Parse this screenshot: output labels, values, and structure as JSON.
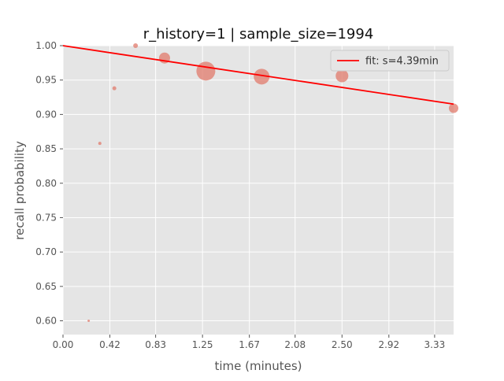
{
  "chart_data": {
    "type": "scatter",
    "title": "r_history=1 | sample_size=1994",
    "xlabel": "time (minutes)",
    "ylabel": "recall probability",
    "xlim": [
      0.0,
      3.5
    ],
    "ylim": [
      0.58,
      1.0
    ],
    "x_ticks": [
      0.0,
      0.42,
      0.83,
      1.25,
      1.67,
      2.08,
      2.5,
      2.92,
      3.33
    ],
    "x_tick_labels": [
      "0.00",
      "0.42",
      "0.83",
      "1.25",
      "1.67",
      "2.08",
      "2.50",
      "2.92",
      "3.33"
    ],
    "y_ticks": [
      0.6,
      0.65,
      0.7,
      0.75,
      0.8,
      0.85,
      0.9,
      0.95,
      1.0
    ],
    "y_tick_labels": [
      "0.60",
      "0.65",
      "0.70",
      "0.75",
      "0.80",
      "0.85",
      "0.90",
      "0.95",
      "1.00"
    ],
    "grid": true,
    "legend_position": "top-right",
    "points": [
      {
        "x": 0.23,
        "y": 0.6,
        "size": 1.5
      },
      {
        "x": 0.33,
        "y": 0.858,
        "size": 2
      },
      {
        "x": 0.46,
        "y": 0.938,
        "size": 2.5
      },
      {
        "x": 0.65,
        "y": 1.0,
        "size": 3
      },
      {
        "x": 0.91,
        "y": 0.982,
        "size": 7
      },
      {
        "x": 1.28,
        "y": 0.963,
        "size": 12
      },
      {
        "x": 1.78,
        "y": 0.955,
        "size": 10
      },
      {
        "x": 2.5,
        "y": 0.956,
        "size": 8
      },
      {
        "x": 3.5,
        "y": 0.909,
        "size": 6
      }
    ],
    "fit": {
      "name": "fit: s=4.39min",
      "x": [
        0.0,
        3.5
      ],
      "y": [
        1.0,
        0.915
      ],
      "color": "#ff0000"
    },
    "colors": {
      "point": "#e07a6b",
      "background": "#e5e5e5",
      "grid": "#ffffff",
      "text": "#555555"
    }
  }
}
